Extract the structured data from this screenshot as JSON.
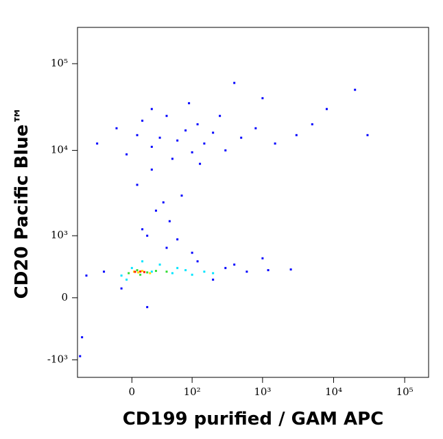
{
  "chart_data": {
    "type": "scatter",
    "x_label": "CD199 purified / GAM APC",
    "y_label": "CD20 Pacific Blue™",
    "xscale": "asinh",
    "yscale": "asinh",
    "xlim": [
      -82,
      217000
    ],
    "ylim": [
      -1630,
      262000
    ],
    "xticks": [
      0,
      {
        "value": 100,
        "label": "10²"
      },
      {
        "value": 1000,
        "label": "10³"
      },
      {
        "value": 10000,
        "label": "10⁴"
      },
      {
        "value": 100000,
        "label": "10⁵"
      }
    ],
    "yticks": [
      {
        "value": -1000,
        "label": "-10³"
      },
      0,
      {
        "value": 1000,
        "label": "10³"
      },
      {
        "value": 10000,
        "label": "10⁴"
      },
      {
        "value": 100000,
        "label": "10⁵"
      }
    ],
    "series": [
      {
        "color": "#0000ff",
        "x": [
          -40,
          -15,
          -5,
          5,
          10,
          20,
          30,
          40,
          60,
          80,
          100,
          120,
          150,
          200,
          300,
          500,
          800,
          1500,
          3000,
          5000,
          8000,
          20,
          50,
          90,
          130,
          250,
          400,
          1000,
          20000,
          30000,
          10,
          25,
          45,
          70,
          5,
          15,
          35,
          60,
          20,
          -30,
          -60,
          120,
          300,
          600,
          1200,
          2500,
          200,
          100,
          40,
          -10,
          15,
          400,
          1000,
          -70,
          -75
        ],
        "y": [
          12000,
          18000,
          9000,
          15000,
          22000,
          11000,
          14000,
          25000,
          13000,
          17000,
          9500,
          20000,
          12000,
          16000,
          10000,
          14000,
          18000,
          12000,
          15000,
          20000,
          30000,
          30000,
          8000,
          35000,
          7000,
          25000,
          60000,
          40000,
          50000,
          15000,
          1200,
          2000,
          1500,
          3000,
          4000,
          1000,
          2500,
          900,
          6000,
          300,
          250,
          450,
          350,
          300,
          320,
          330,
          200,
          600,
          700,
          100,
          -100,
          400,
          500,
          -500,
          -900
        ]
      },
      {
        "color": "#00e5ff",
        "x": [
          0,
          20,
          50,
          80,
          -10,
          30,
          150,
          100,
          10,
          -5,
          60,
          200
        ],
        "y": [
          350,
          300,
          280,
          320,
          250,
          400,
          300,
          260,
          450,
          200,
          350,
          280
        ]
      },
      {
        "color": "#33dd33",
        "x": [
          5,
          15,
          25,
          -3,
          40,
          8
        ],
        "y": [
          320,
          290,
          310,
          280,
          300,
          260
        ]
      },
      {
        "color": "#ffdd00",
        "x": [
          2,
          10,
          18,
          6
        ],
        "y": [
          300,
          310,
          280,
          290
        ]
      },
      {
        "color": "#ff2200",
        "x": [
          3,
          8,
          12
        ],
        "y": [
          298,
          302,
          295
        ]
      }
    ]
  }
}
